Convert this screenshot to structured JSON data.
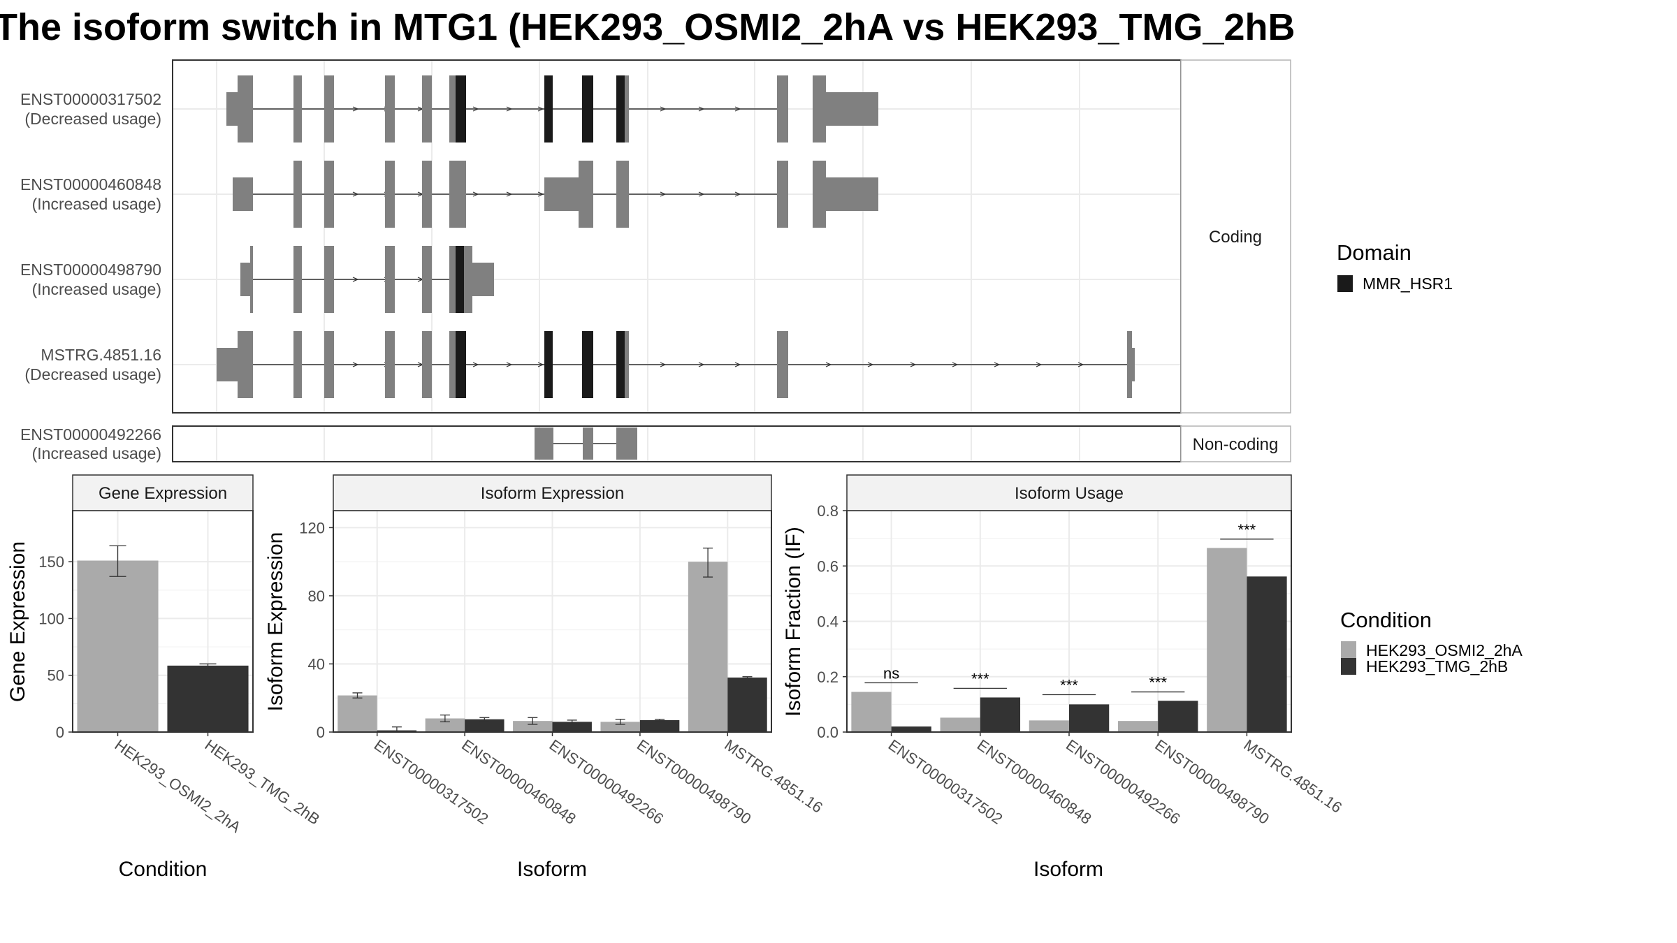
{
  "title": "The isoform switch in MTG1 (HEK293_OSMI2_2hA vs HEK293_TMG_2hB",
  "colors": {
    "exon": "#808080",
    "domain": "#1a1a1a",
    "cond_a": "#aaaaaa",
    "cond_b": "#333333",
    "grid": "#ebebeb",
    "strip": "#f2f2f2"
  },
  "transcripts": {
    "coding_label": "Coding",
    "noncoding_label": "Non-coding",
    "coding": [
      {
        "id": "ENST00000317502",
        "note": "(Decreased usage)"
      },
      {
        "id": "ENST00000460848",
        "note": "(Increased usage)"
      },
      {
        "id": "ENST00000498790",
        "note": "(Increased usage)"
      },
      {
        "id": "MSTRG.4851.16",
        "note": "(Decreased usage)"
      }
    ],
    "noncoding": [
      {
        "id": "ENST00000492266",
        "note": "(Increased usage)"
      }
    ]
  },
  "domain_legend": {
    "title": "Domain",
    "items": [
      "MMR_HSR1"
    ]
  },
  "condition_legend": {
    "title": "Condition",
    "items": [
      "HEK293_OSMI2_2hA",
      "HEK293_TMG_2hB"
    ]
  },
  "chart_data": [
    {
      "type": "bar",
      "title": "Gene Expression",
      "xlabel": "Condition",
      "ylabel": "Gene Expression",
      "ylim": [
        0,
        195
      ],
      "yticks": [
        0,
        50,
        100,
        150
      ],
      "categories": [
        "HEK293_OSMI2_2hA",
        "HEK293_TMG_2hB"
      ],
      "series": [
        {
          "name": "Gene Expression",
          "values": [
            151,
            58.5
          ],
          "err_low": [
            137,
            56
          ],
          "err_high": [
            164,
            60
          ]
        }
      ]
    },
    {
      "type": "bar",
      "title": "Isoform Expression",
      "xlabel": "Isoform",
      "ylabel": "Isoform Expression",
      "ylim": [
        0,
        130
      ],
      "yticks": [
        0,
        40,
        80,
        120
      ],
      "categories": [
        "ENST00000317502",
        "ENST00000460848",
        "ENST00000492266",
        "ENST00000498790",
        "MSTRG.4851.16"
      ],
      "series": [
        {
          "name": "HEK293_OSMI2_2hA",
          "values": [
            21.5,
            8,
            6.5,
            6,
            100
          ],
          "err_low": [
            20,
            6,
            4.5,
            4.5,
            91
          ],
          "err_high": [
            23,
            10,
            8.5,
            7.5,
            108
          ]
        },
        {
          "name": "HEK293_TMG_2hB",
          "values": [
            1,
            7.5,
            6,
            7,
            32
          ],
          "err_low": [
            0,
            6.5,
            5,
            6.5,
            31.5
          ],
          "err_high": [
            3,
            8.5,
            7,
            7.5,
            32.5
          ]
        }
      ]
    },
    {
      "type": "bar",
      "title": "Isoform Usage",
      "xlabel": "Isoform",
      "ylabel": "Isoform Fraction (IF)",
      "ylim": [
        0,
        0.8
      ],
      "yticks": [
        0,
        0.2,
        0.4,
        0.6,
        0.8
      ],
      "ytick_labels": [
        "0.0",
        "0.2",
        "0.4",
        "0.6",
        "0.8"
      ],
      "categories": [
        "ENST00000317502",
        "ENST00000460848",
        "ENST00000492266",
        "ENST00000498790",
        "MSTRG.4851.16"
      ],
      "series": [
        {
          "name": "HEK293_OSMI2_2hA",
          "values": [
            0.145,
            0.052,
            0.042,
            0.04,
            0.665
          ]
        },
        {
          "name": "HEK293_TMG_2hB",
          "values": [
            0.02,
            0.125,
            0.1,
            0.113,
            0.562
          ]
        }
      ],
      "significance": [
        "ns",
        "***",
        "***",
        "***",
        "***"
      ],
      "significance_levels": [
        0.178,
        0.158,
        0.135,
        0.145,
        0.697
      ]
    }
  ]
}
